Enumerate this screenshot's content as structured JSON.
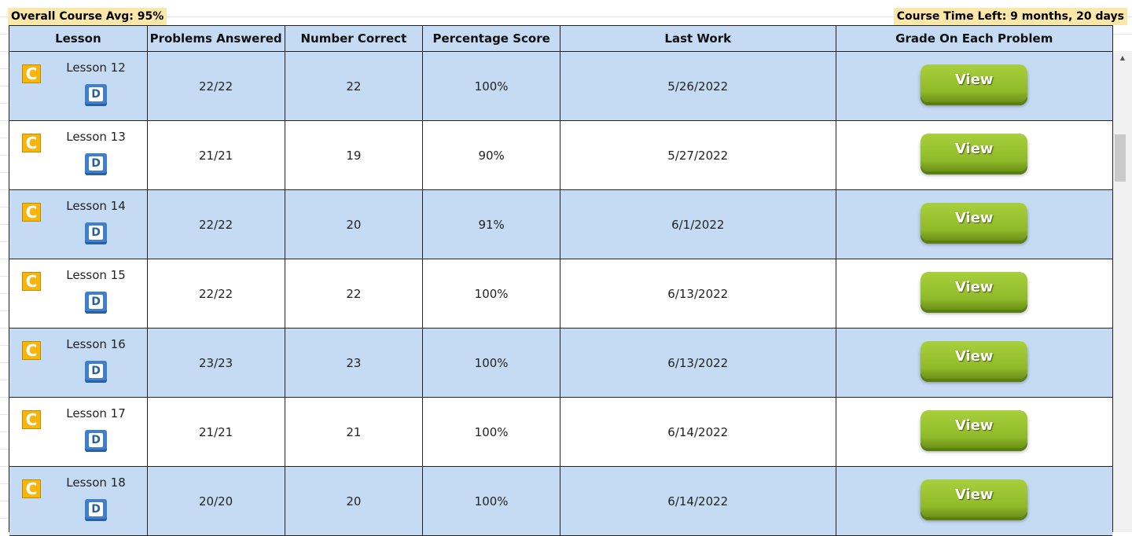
{
  "summary": {
    "overall_avg": "Overall Course Avg: 95%",
    "time_left": "Course Time Left: 9 months, 20 days"
  },
  "table": {
    "headers": [
      "Lesson",
      "Problems Answered",
      "Number Correct",
      "Percentage Score",
      "Last Work",
      "Grade On Each Problem"
    ],
    "rows": [
      {
        "lesson": "Lesson 12",
        "answered": "22/22",
        "correct": "22",
        "percent": "100%",
        "last_work": "5/26/2022",
        "action": "View"
      },
      {
        "lesson": "Lesson 13",
        "answered": "21/21",
        "correct": "19",
        "percent": "90%",
        "last_work": "5/27/2022",
        "action": "View"
      },
      {
        "lesson": "Lesson 14",
        "answered": "22/22",
        "correct": "20",
        "percent": "91%",
        "last_work": "6/1/2022",
        "action": "View"
      },
      {
        "lesson": "Lesson 15",
        "answered": "22/22",
        "correct": "22",
        "percent": "100%",
        "last_work": "6/13/2022",
        "action": "View"
      },
      {
        "lesson": "Lesson 16",
        "answered": "23/23",
        "correct": "23",
        "percent": "100%",
        "last_work": "6/13/2022",
        "action": "View"
      },
      {
        "lesson": "Lesson 17",
        "answered": "21/21",
        "correct": "21",
        "percent": "100%",
        "last_work": "6/14/2022",
        "action": "View"
      },
      {
        "lesson": "Lesson 18",
        "answered": "20/20",
        "correct": "20",
        "percent": "100%",
        "last_work": "6/14/2022",
        "action": "View"
      }
    ]
  },
  "icons": {
    "course_icon_letter": "C",
    "doc_icon_letter": "D"
  },
  "colors": {
    "row_blue": "#c5daf3",
    "summary_bg": "#fbe7a8",
    "view_button": "#8fbb2a"
  }
}
